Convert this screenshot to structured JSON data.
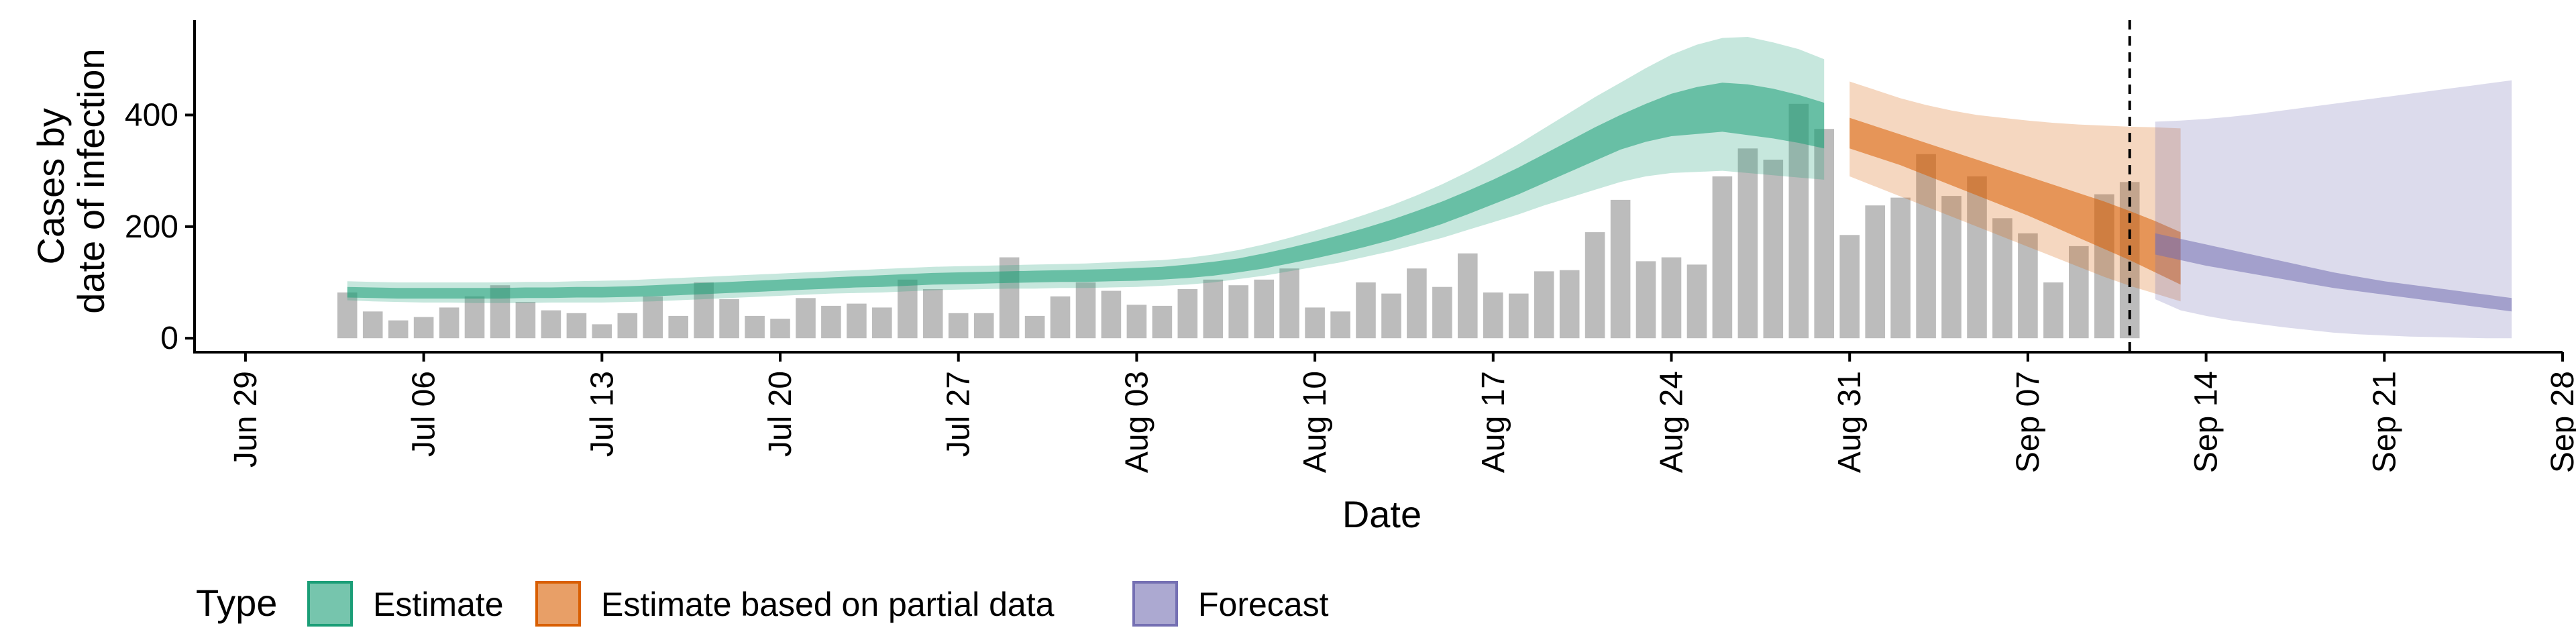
{
  "chart_data": {
    "type": "area",
    "xlabel": "Date",
    "ylabel_line1": "Cases by",
    "ylabel_line2": "date of infection",
    "x_range": [
      "2020-06-27",
      "2020-09-28"
    ],
    "ylim": [
      -25,
      570
    ],
    "y_ticks": [
      0,
      200,
      400
    ],
    "x_ticks": [
      {
        "date": "2020-06-29",
        "label": "Jun 29"
      },
      {
        "date": "2020-07-06",
        "label": "Jul 06"
      },
      {
        "date": "2020-07-13",
        "label": "Jul 13"
      },
      {
        "date": "2020-07-20",
        "label": "Jul 20"
      },
      {
        "date": "2020-07-27",
        "label": "Jul 27"
      },
      {
        "date": "2020-08-03",
        "label": "Aug 03"
      },
      {
        "date": "2020-08-10",
        "label": "Aug 10"
      },
      {
        "date": "2020-08-17",
        "label": "Aug 17"
      },
      {
        "date": "2020-08-24",
        "label": "Aug 24"
      },
      {
        "date": "2020-08-31",
        "label": "Aug 31"
      },
      {
        "date": "2020-09-07",
        "label": "Sep 07"
      },
      {
        "date": "2020-09-14",
        "label": "Sep 14"
      },
      {
        "date": "2020-09-21",
        "label": "Sep 21"
      },
      {
        "date": "2020-09-28",
        "label": "Sep 28"
      }
    ],
    "vline_date": "2020-09-11",
    "bars": {
      "start_date": "2020-07-03",
      "values": [
        82,
        48,
        32,
        38,
        55,
        75,
        95,
        65,
        50,
        45,
        25,
        45,
        75,
        40,
        100,
        70,
        40,
        35,
        72,
        58,
        62,
        55,
        105,
        88,
        45,
        45,
        145,
        40,
        75,
        100,
        85,
        60,
        58,
        88,
        105,
        95,
        105,
        125,
        55,
        48,
        100,
        80,
        125,
        92,
        152,
        82,
        80,
        120,
        122,
        190,
        248,
        138,
        145,
        132,
        290,
        340,
        320,
        420,
        375,
        185,
        238,
        252,
        330,
        255,
        290,
        215,
        188,
        100,
        165,
        258,
        280
      ]
    },
    "legend_title": "Type",
    "series": [
      {
        "name": "Estimate",
        "color": "#1B9E77",
        "start_date": "2020-07-03",
        "outer_lower": [
          68,
          66,
          65,
          64,
          64,
          63,
          63,
          63,
          64,
          64,
          64,
          65,
          66,
          68,
          70,
          72,
          74,
          76,
          78,
          80,
          81,
          82,
          84,
          86,
          87,
          88,
          89,
          89,
          90,
          90,
          91,
          92,
          94,
          96,
          100,
          106,
          112,
          120,
          128,
          136,
          146,
          156,
          168,
          180,
          194,
          208,
          222,
          238,
          252,
          266,
          280,
          290,
          296,
          298,
          300,
          296,
          292,
          288,
          284
        ],
        "inner_lower": [
          73,
          72,
          71,
          71,
          71,
          71,
          71,
          72,
          72,
          73,
          73,
          74,
          75,
          77,
          79,
          81,
          83,
          85,
          87,
          89,
          91,
          92,
          94,
          96,
          97,
          98,
          99,
          100,
          101,
          101,
          102,
          103,
          105,
          108,
          112,
          118,
          125,
          134,
          143,
          153,
          164,
          176,
          190,
          205,
          222,
          240,
          258,
          278,
          298,
          318,
          338,
          352,
          362,
          366,
          370,
          364,
          358,
          350,
          340
        ],
        "inner_upper": [
          92,
          91,
          90,
          90,
          90,
          90,
          90,
          91,
          91,
          92,
          92,
          93,
          95,
          97,
          99,
          101,
          103,
          105,
          107,
          109,
          111,
          113,
          115,
          117,
          118,
          119,
          120,
          121,
          122,
          123,
          124,
          126,
          128,
          132,
          137,
          143,
          152,
          162,
          173,
          185,
          198,
          212,
          228,
          245,
          264,
          284,
          306,
          330,
          354,
          378,
          400,
          420,
          438,
          450,
          458,
          455,
          447,
          436,
          422
        ],
        "outer_upper": [
          102,
          101,
          100,
          100,
          100,
          100,
          100,
          101,
          101,
          102,
          103,
          104,
          106,
          108,
          110,
          112,
          114,
          116,
          118,
          120,
          122,
          124,
          126,
          128,
          129,
          130,
          131,
          132,
          133,
          134,
          136,
          138,
          140,
          144,
          150,
          158,
          168,
          180,
          193,
          207,
          222,
          238,
          256,
          276,
          298,
          322,
          348,
          376,
          404,
          432,
          458,
          484,
          508,
          526,
          538,
          540,
          530,
          518,
          500
        ]
      },
      {
        "name": "Estimate based on partial data",
        "color": "#D95F02",
        "start_date": "2020-08-31",
        "outer_lower": [
          290,
          272,
          254,
          236,
          218,
          200,
          182,
          164,
          146,
          128,
          110,
          94,
          80,
          66
        ],
        "inner_lower": [
          340,
          325,
          310,
          292,
          274,
          256,
          238,
          220,
          200,
          180,
          160,
          140,
          118,
          96
        ],
        "inner_upper": [
          395,
          380,
          365,
          350,
          335,
          320,
          305,
          290,
          275,
          260,
          245,
          228,
          210,
          190
        ],
        "outer_upper": [
          460,
          445,
          430,
          418,
          408,
          400,
          395,
          390,
          386,
          383,
          381,
          379,
          378,
          376
        ]
      },
      {
        "name": "Forecast",
        "color": "#7570B3",
        "start_date": "2020-09-12",
        "outer_lower": [
          70,
          50,
          40,
          32,
          26,
          20,
          15,
          10,
          7,
          5,
          3,
          2,
          1,
          0,
          0
        ],
        "inner_lower": [
          150,
          140,
          130,
          122,
          114,
          106,
          98,
          90,
          84,
          78,
          72,
          66,
          60,
          54,
          48
        ],
        "inner_upper": [
          188,
          178,
          168,
          158,
          148,
          138,
          128,
          118,
          110,
          102,
          96,
          90,
          84,
          78,
          72
        ],
        "outer_upper": [
          388,
          390,
          393,
          397,
          402,
          408,
          414,
          420,
          426,
          432,
          438,
          444,
          450,
          456,
          462
        ]
      }
    ]
  }
}
